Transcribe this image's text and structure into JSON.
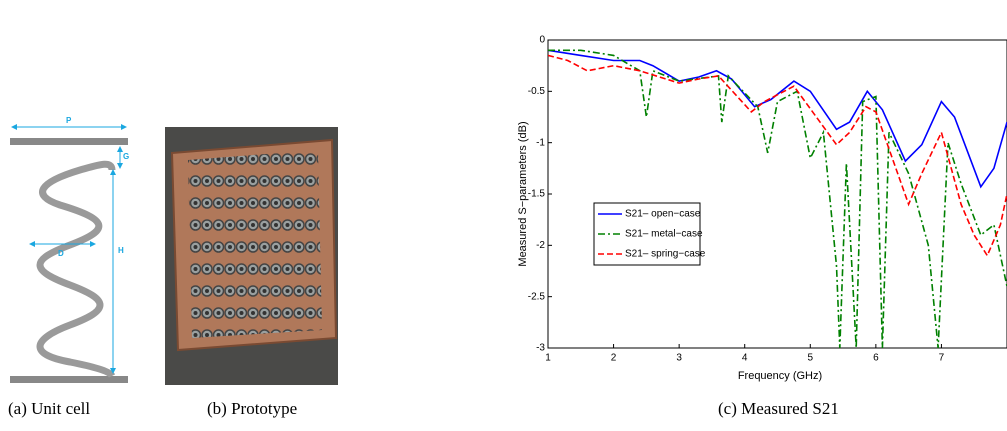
{
  "panel_a": {
    "caption": "(a) Unit cell",
    "labels": [
      "P",
      "G",
      "D",
      "H"
    ]
  },
  "panel_b": {
    "caption": "(b) Prototype"
  },
  "chart_data": {
    "type": "line",
    "caption": "(c) Measured S21",
    "xlabel": "Frequency (GHz)",
    "ylabel": "Measured S−parameters (dB)",
    "xlim": [
      1,
      8
    ],
    "ylim": [
      -3,
      0
    ],
    "xticks": [
      1,
      2,
      3,
      4,
      5,
      6,
      7
    ],
    "yticks": [
      0,
      -0.5,
      -1,
      -1.5,
      -2,
      -2.5,
      -3
    ],
    "legend": "upper-left",
    "series": [
      {
        "name": "S21– open−case",
        "color": "#0000ff",
        "style": "solid",
        "x": [
          1,
          1.5,
          2,
          2.4,
          2.6,
          3,
          3.3,
          3.57,
          3.8,
          4.15,
          4.4,
          4.75,
          5.0,
          5.4,
          5.6,
          5.87,
          6.1,
          6.45,
          6.7,
          7.0,
          7.2,
          7.6,
          7.8,
          8
        ],
        "values": [
          -0.1,
          -0.15,
          -0.2,
          -0.2,
          -0.25,
          -0.4,
          -0.36,
          -0.3,
          -0.38,
          -0.65,
          -0.58,
          -0.4,
          -0.5,
          -0.87,
          -0.8,
          -0.5,
          -0.68,
          -1.18,
          -1.02,
          -0.6,
          -0.75,
          -1.43,
          -1.25,
          -0.8
        ]
      },
      {
        "name": "S21– metal−case",
        "color": "#008000",
        "style": "dashdot",
        "x": [
          1,
          1.5,
          2,
          2.4,
          2.5,
          2.6,
          3,
          3.6,
          3.65,
          3.75,
          4.2,
          4.35,
          4.5,
          4.8,
          5.0,
          5.2,
          5.4,
          5.45,
          5.55,
          5.7,
          5.8,
          6.0,
          6.1,
          6.2,
          6.5,
          6.8,
          6.95,
          7.1,
          7.3,
          7.6,
          7.8,
          8
        ],
        "values": [
          -0.1,
          -0.1,
          -0.15,
          -0.3,
          -0.75,
          -0.3,
          -0.4,
          -0.35,
          -0.8,
          -0.35,
          -0.65,
          -1.1,
          -0.6,
          -0.5,
          -1.15,
          -0.9,
          -2.2,
          -3,
          -1.2,
          -3,
          -0.6,
          -0.55,
          -3,
          -0.9,
          -1.3,
          -2.0,
          -3,
          -1.0,
          -1.4,
          -1.9,
          -1.8,
          -2.4
        ]
      },
      {
        "name": "S21– spring−case",
        "color": "#ff0000",
        "style": "dashed",
        "x": [
          1,
          1.3,
          1.6,
          2,
          2.4,
          3,
          3.3,
          3.6,
          4.1,
          4.3,
          4.75,
          5.4,
          5.6,
          5.85,
          6.0,
          6.5,
          6.7,
          7.0,
          7.3,
          7.5,
          7.7,
          7.9,
          8
        ],
        "values": [
          -0.15,
          -0.2,
          -0.3,
          -0.25,
          -0.3,
          -0.42,
          -0.38,
          -0.35,
          -0.7,
          -0.6,
          -0.45,
          -1.02,
          -0.9,
          -0.65,
          -0.7,
          -1.6,
          -1.3,
          -0.9,
          -1.6,
          -1.9,
          -2.1,
          -1.8,
          -1.5
        ]
      }
    ]
  }
}
